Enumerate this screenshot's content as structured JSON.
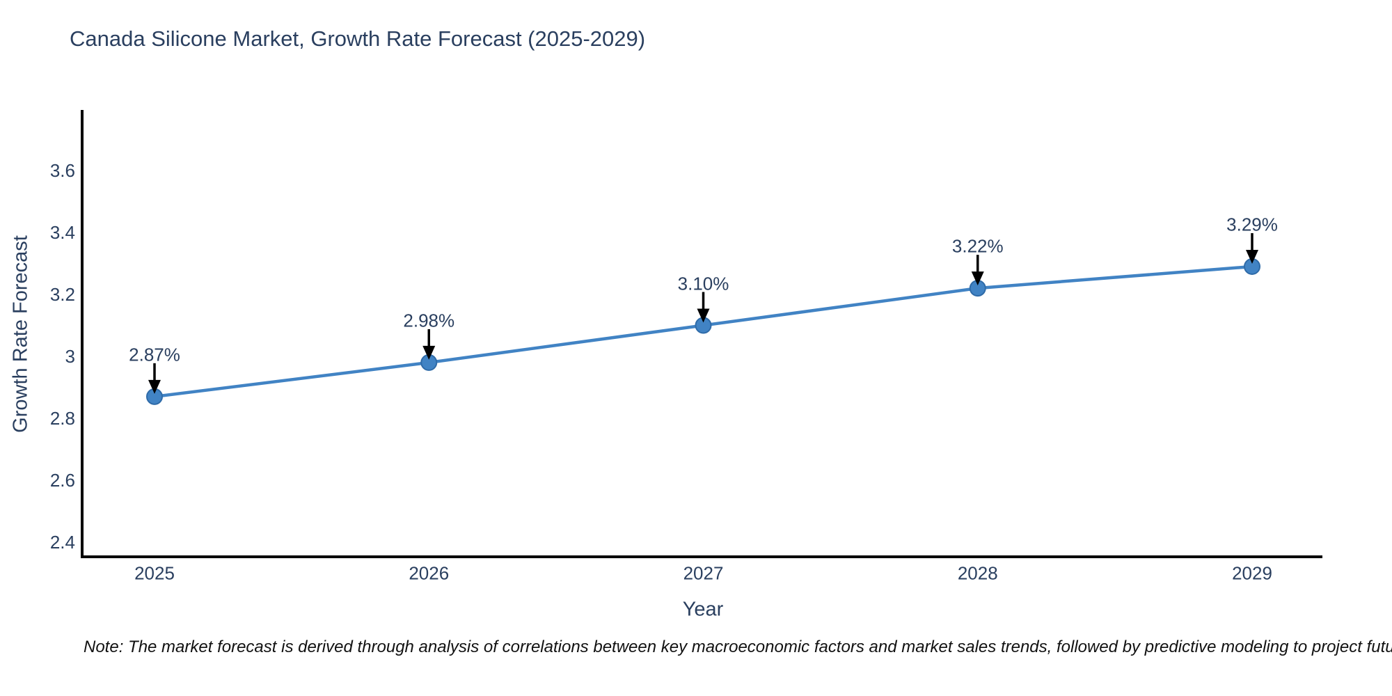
{
  "title": "Canada Silicone Market, Growth Rate Forecast (2025-2029)",
  "note": "Note: The market forecast is derived through analysis of correlations between key macroeconomic factors and market sales trends, followed by predictive modeling to project future sales",
  "chart_data": {
    "type": "line",
    "x": [
      2025,
      2026,
      2027,
      2028,
      2029
    ],
    "x_labels": [
      "2025",
      "2026",
      "2027",
      "2028",
      "2029"
    ],
    "values": [
      2.87,
      2.98,
      3.1,
      3.22,
      3.29
    ],
    "point_labels": [
      "2.87%",
      "2.98%",
      "3.10%",
      "3.22%",
      "3.29%"
    ],
    "title": "Canada Silicone Market, Growth Rate Forecast (2025-2029)",
    "xlabel": "Year",
    "ylabel": "Growth Rate Forecast",
    "yticks": [
      2.4,
      2.6,
      2.8,
      3.0,
      3.2,
      3.4,
      3.6
    ],
    "ytick_labels": [
      "2.4",
      "2.6",
      "2.8",
      "3",
      "3.2",
      "3.4",
      "3.6"
    ],
    "xlim": [
      2024.74,
      2029.26
    ],
    "ylim": [
      2.35,
      3.79
    ],
    "grid": false,
    "legend": false,
    "annotations_style": "value label above each point with downward black arrow",
    "line_color": "#4183c4",
    "marker_color": "#4183c4",
    "marker_edge_color": "#2f6ba8",
    "arrow_color": "#000000",
    "axis_color": "#000000",
    "text_color": "#2a3f5f",
    "note_color": "#111111",
    "background_color": "#ffffff"
  }
}
